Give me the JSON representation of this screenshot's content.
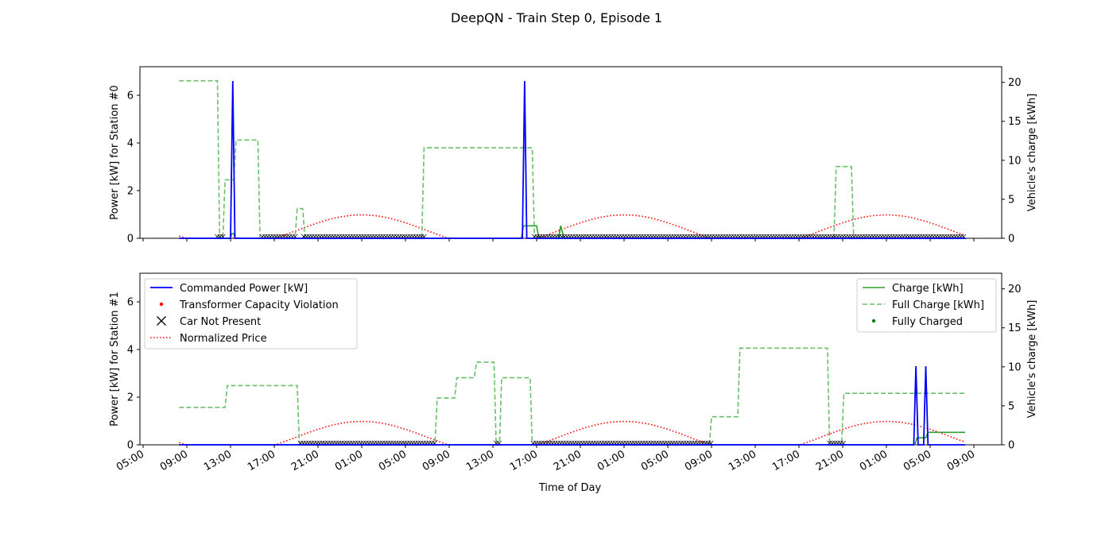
{
  "chart_data": {
    "type": "line",
    "title": "DeepQN - Train Step 0, Episode 1",
    "xlabel": "Time of Day",
    "x_tick_labels": [
      "05:00",
      "09:00",
      "13:00",
      "17:00",
      "21:00",
      "01:00",
      "05:00",
      "09:00",
      "13:00",
      "17:00",
      "21:00",
      "01:00",
      "05:00",
      "09:00",
      "13:00",
      "17:00",
      "21:00",
      "01:00",
      "05:00",
      "09:00"
    ],
    "x_unit": "hours since first 05:00 tick",
    "xlim": [
      0,
      76
    ],
    "colors": {
      "power": "#0000ff",
      "charge": "#2ca02c",
      "full": "#6abf6a",
      "price": "#ff0000",
      "violation": "#ff0000",
      "absent": "#000000"
    },
    "legend_left": [
      "Commanded Power [kW]",
      "Transformer Capacity Violation",
      "Car Not Present",
      "Normalized Price"
    ],
    "legend_right": [
      "Charge [kWh]",
      "Full Charge [kWh]",
      "Fully Charged"
    ],
    "panels": [
      {
        "ylabel_left": "Power [kW] for Station #0",
        "ylabel_right": "Vehicle's charge [kWh]",
        "ylim_left": [
          0,
          7.2
        ],
        "ylim_right": [
          0,
          22
        ],
        "yticks_left": [
          "0",
          "2",
          "4",
          "6"
        ],
        "yticks_right": [
          "0",
          "5",
          "10",
          "15",
          "20"
        ],
        "commanded_power": [
          [
            3.3,
            0
          ],
          [
            8.0,
            0
          ],
          [
            8.2,
            6.6
          ],
          [
            8.4,
            0
          ],
          [
            34.7,
            0
          ],
          [
            34.9,
            6.6
          ],
          [
            35.1,
            0
          ],
          [
            75.2,
            0
          ]
        ],
        "charge": [
          [
            3.3,
            0
          ],
          [
            8.0,
            0
          ],
          [
            8.1,
            0.6
          ],
          [
            8.3,
            0.6
          ],
          [
            8.4,
            0
          ],
          [
            34.6,
            0
          ],
          [
            34.8,
            1.6
          ],
          [
            36.0,
            1.6
          ],
          [
            36.2,
            0
          ],
          [
            38.0,
            0
          ],
          [
            38.2,
            1.6
          ],
          [
            38.5,
            0
          ],
          [
            75.2,
            0
          ]
        ],
        "full_charge": [
          [
            3.3,
            20.2
          ],
          [
            6.8,
            20.2
          ],
          [
            7.0,
            0
          ],
          [
            7.3,
            0
          ],
          [
            7.5,
            7.5
          ],
          [
            8.3,
            7.5
          ],
          [
            8.5,
            12.6
          ],
          [
            10.5,
            12.6
          ],
          [
            10.7,
            0
          ],
          [
            13.9,
            0
          ],
          [
            14.1,
            3.8
          ],
          [
            14.6,
            3.8
          ],
          [
            14.8,
            0
          ],
          [
            25.5,
            0
          ],
          [
            25.7,
            11.6
          ],
          [
            35.6,
            11.6
          ],
          [
            35.8,
            0
          ],
          [
            38.0,
            0
          ],
          [
            38.2,
            1.6
          ],
          [
            38.5,
            0
          ],
          [
            63.2,
            0
          ],
          [
            63.4,
            9.2
          ],
          [
            64.8,
            9.2
          ],
          [
            65.0,
            0
          ],
          [
            75.2,
            0
          ]
        ],
        "normalized_price_peak": 3.0,
        "car_not_present": [
          [
            6.8,
            7.3
          ],
          [
            10.9,
            13.9
          ],
          [
            14.7,
            25.7
          ],
          [
            35.8,
            75.2
          ]
        ]
      },
      {
        "ylabel_left": "Power [kW] for Station #1",
        "ylabel_right": "Vehicle's charge [kWh]",
        "ylim_left": [
          0,
          7.2
        ],
        "ylim_right": [
          0,
          22
        ],
        "yticks_left": [
          "0",
          "2",
          "4",
          "6"
        ],
        "yticks_right": [
          "0",
          "5",
          "10",
          "15",
          "20"
        ],
        "commanded_power": [
          [
            3.3,
            0
          ],
          [
            70.5,
            0
          ],
          [
            70.7,
            3.3
          ],
          [
            70.9,
            0
          ],
          [
            71.4,
            0
          ],
          [
            71.6,
            3.3
          ],
          [
            71.8,
            0
          ],
          [
            75.2,
            0
          ]
        ],
        "charge": [
          [
            3.3,
            0
          ],
          [
            70.6,
            0
          ],
          [
            70.8,
            0.9
          ],
          [
            71.6,
            0.9
          ],
          [
            71.8,
            1.6
          ],
          [
            75.2,
            1.6
          ]
        ],
        "full_charge": [
          [
            3.3,
            4.8
          ],
          [
            7.5,
            4.8
          ],
          [
            7.7,
            7.6
          ],
          [
            14.1,
            7.6
          ],
          [
            14.3,
            0
          ],
          [
            26.7,
            0
          ],
          [
            26.9,
            6.0
          ],
          [
            28.5,
            6.0
          ],
          [
            28.7,
            8.6
          ],
          [
            30.3,
            8.6
          ],
          [
            30.5,
            10.6
          ],
          [
            32.1,
            10.6
          ],
          [
            32.3,
            0
          ],
          [
            32.6,
            0
          ],
          [
            32.8,
            8.6
          ],
          [
            35.4,
            8.6
          ],
          [
            35.6,
            0
          ],
          [
            51.8,
            0
          ],
          [
            52.0,
            3.6
          ],
          [
            54.4,
            3.6
          ],
          [
            54.6,
            12.4
          ],
          [
            62.6,
            12.4
          ],
          [
            62.8,
            0
          ],
          [
            63.9,
            0
          ],
          [
            64.1,
            6.6
          ],
          [
            75.2,
            6.6
          ]
        ],
        "normalized_price_peak": 3.0,
        "car_not_present": [
          [
            14.4,
            26.8
          ],
          [
            32.3,
            32.6
          ],
          [
            35.7,
            52.0
          ],
          [
            62.8,
            64.1
          ]
        ]
      }
    ]
  }
}
